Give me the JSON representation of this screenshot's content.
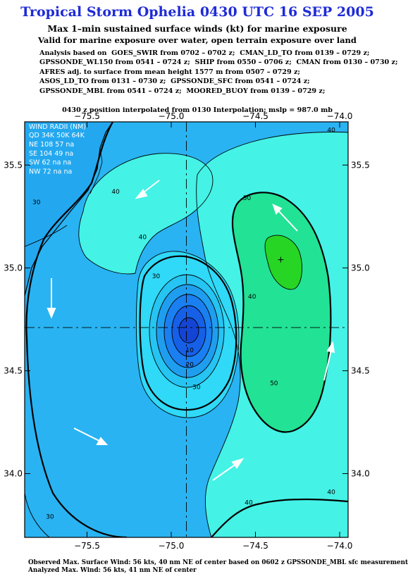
{
  "title": "Tropical Storm Ophelia 0430 UTC 16 SEP 2005",
  "subtitle1": "Max 1–min sustained surface winds (kt) for marine exposure",
  "subtitle2": "Valid for marine exposure over water, open terrain exposure over land",
  "analysis_lines": [
    "Analysis based on  GOES_SWIR from 0702 – 0702 z;  CMAN_LD_TO from 0139 – 0729 z;",
    "GPSSONDE_WL150 from 0541 – 0724 z;  SHIP from 0550 – 0706 z;  CMAN from 0130 – 0730 z;",
    "AFRES adj. to surface from mean height 1577 m from 0507 – 0729 z;",
    "ASOS_LD_TO from 0131 – 0730 z;  GPSSONDE_SFC from 0541 – 0724 z;",
    "GPSSONDE_MBL from 0541 – 0724 z;  MOORED_BUOY from 0139 – 0729 z;"
  ],
  "interpolation_note": "0430 z position interpolated from 0130 Interpolation; mslp = 987.0 mb",
  "map": {
    "lon_ticks": [
      {
        "value": -75.5,
        "label": "−75.5"
      },
      {
        "value": -75.0,
        "label": "−75.0"
      },
      {
        "value": -74.5,
        "label": "−74.5"
      },
      {
        "value": -74.0,
        "label": "−74.0"
      }
    ],
    "lat_ticks": [
      {
        "value": 35.5,
        "label": "35.5"
      },
      {
        "value": 35.0,
        "label": "35.0"
      },
      {
        "value": 34.5,
        "label": "34.5"
      },
      {
        "value": 34.0,
        "label": "34.0"
      }
    ],
    "center": {
      "lon": -74.91,
      "lat": 34.71
    },
    "max_wind_marker": {
      "lon": -74.35,
      "lat": 35.04
    },
    "contour_labels": [
      {
        "text": "40",
        "lon": -75.33,
        "lat": 35.36
      },
      {
        "text": "40",
        "lon": -75.17,
        "lat": 35.14
      },
      {
        "text": "30",
        "lon": -75.09,
        "lat": 34.95
      },
      {
        "text": "50",
        "lon": -74.55,
        "lat": 35.33
      },
      {
        "text": "40",
        "lon": -74.52,
        "lat": 34.85
      },
      {
        "text": "50",
        "lon": -74.39,
        "lat": 34.43
      },
      {
        "text": "10",
        "lon": -74.89,
        "lat": 34.59
      },
      {
        "text": "20",
        "lon": -74.89,
        "lat": 34.52
      },
      {
        "text": "30",
        "lon": -74.85,
        "lat": 34.41
      },
      {
        "text": "30",
        "lon": -75.8,
        "lat": 35.31
      },
      {
        "text": "30",
        "lon": -75.72,
        "lat": 33.78
      },
      {
        "text": "40",
        "lon": -74.54,
        "lat": 33.85
      },
      {
        "text": "40",
        "lon": -74.05,
        "lat": 35.66
      },
      {
        "text": "40",
        "lon": -74.05,
        "lat": 33.9
      }
    ],
    "colors": {
      "background": "#29b3f2",
      "land": "#23a8ef",
      "level_30": "#2fd9f7",
      "level_40": "#44f2e6",
      "level_50": "#22e295",
      "level_60": "#27d624",
      "core_10": "#1a7ff0",
      "core_0": "#1660e8",
      "core_inner": "#1444d4"
    }
  },
  "wind_radii": {
    "header": "WIND RADII (NM)",
    "columns": "QD 34K 50K 64K",
    "rows": [
      {
        "quadrant": "NE",
        "v34": "108",
        "v50": "57",
        "v64": "na"
      },
      {
        "quadrant": "SE",
        "v34": "104",
        "v50": "49",
        "v64": "na"
      },
      {
        "quadrant": "SW",
        "v34": "62",
        "v50": "na",
        "v64": "na"
      },
      {
        "quadrant": "NW",
        "v34": "72",
        "v50": "na",
        "v64": "na"
      }
    ]
  },
  "footer": {
    "observed": "Observed Max. Surface Wind: 56 kts, 40 nm NE of center based on 0602 z GPSSONDE_MBL sfc measurement",
    "analyzed": "Analyzed Max. Wind: 56 kts, 41 nm NE of center"
  }
}
